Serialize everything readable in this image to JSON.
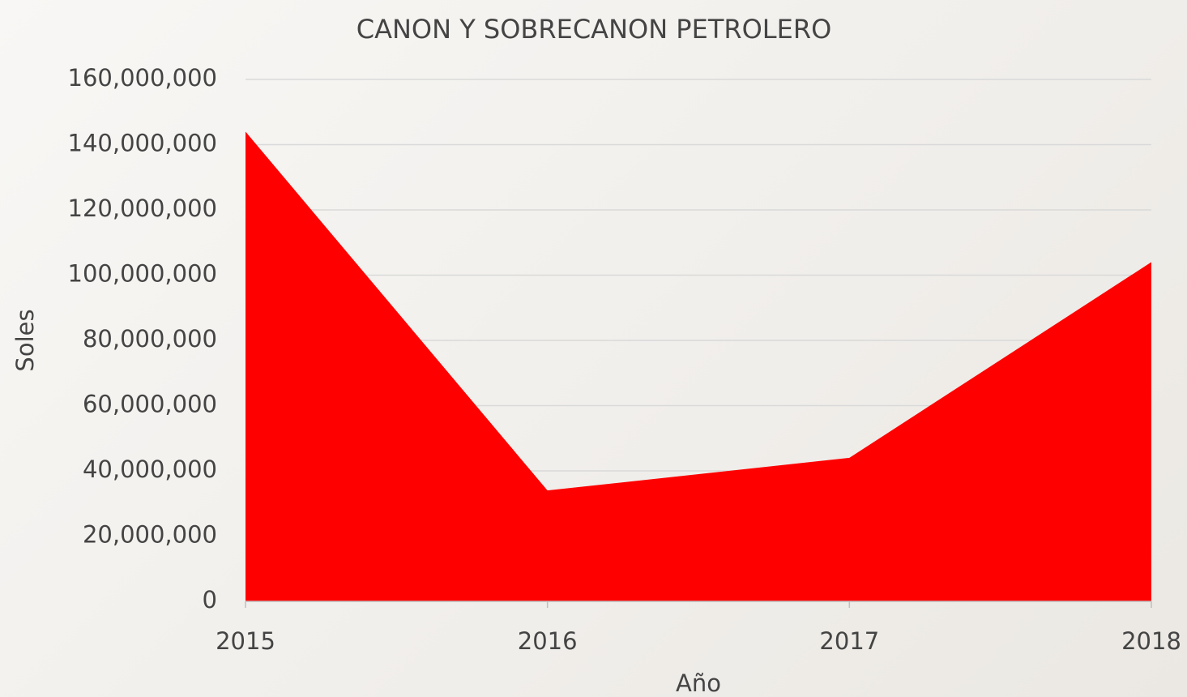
{
  "chart_data": {
    "type": "area",
    "title": "CANON Y SOBRECANON PETROLERO",
    "x_label": "Año",
    "y_label": "Soles",
    "categories": [
      "2015",
      "2016",
      "2017",
      "2018"
    ],
    "series": [
      {
        "name": "Canon y sobrecanon",
        "color": "#ff0000",
        "values": [
          144000000,
          34000000,
          44000000,
          104000000
        ]
      }
    ],
    "ylim": [
      0,
      160000000
    ],
    "yticks": [
      0,
      {
        "value": 20000000,
        "label": "20,000,000"
      },
      {
        "value": 40000000,
        "label": "40,000,000"
      },
      {
        "value": 60000000,
        "label": "60,000,000"
      },
      {
        "value": 80000000,
        "label": "80,000,000"
      },
      {
        "value": 100000000,
        "label": "100,000,000"
      },
      {
        "value": 120000000,
        "label": "120,000,000"
      },
      {
        "value": 140000000,
        "label": "140,000,000"
      },
      {
        "value": 160000000,
        "label": "160,000,000"
      }
    ],
    "grid": true
  }
}
